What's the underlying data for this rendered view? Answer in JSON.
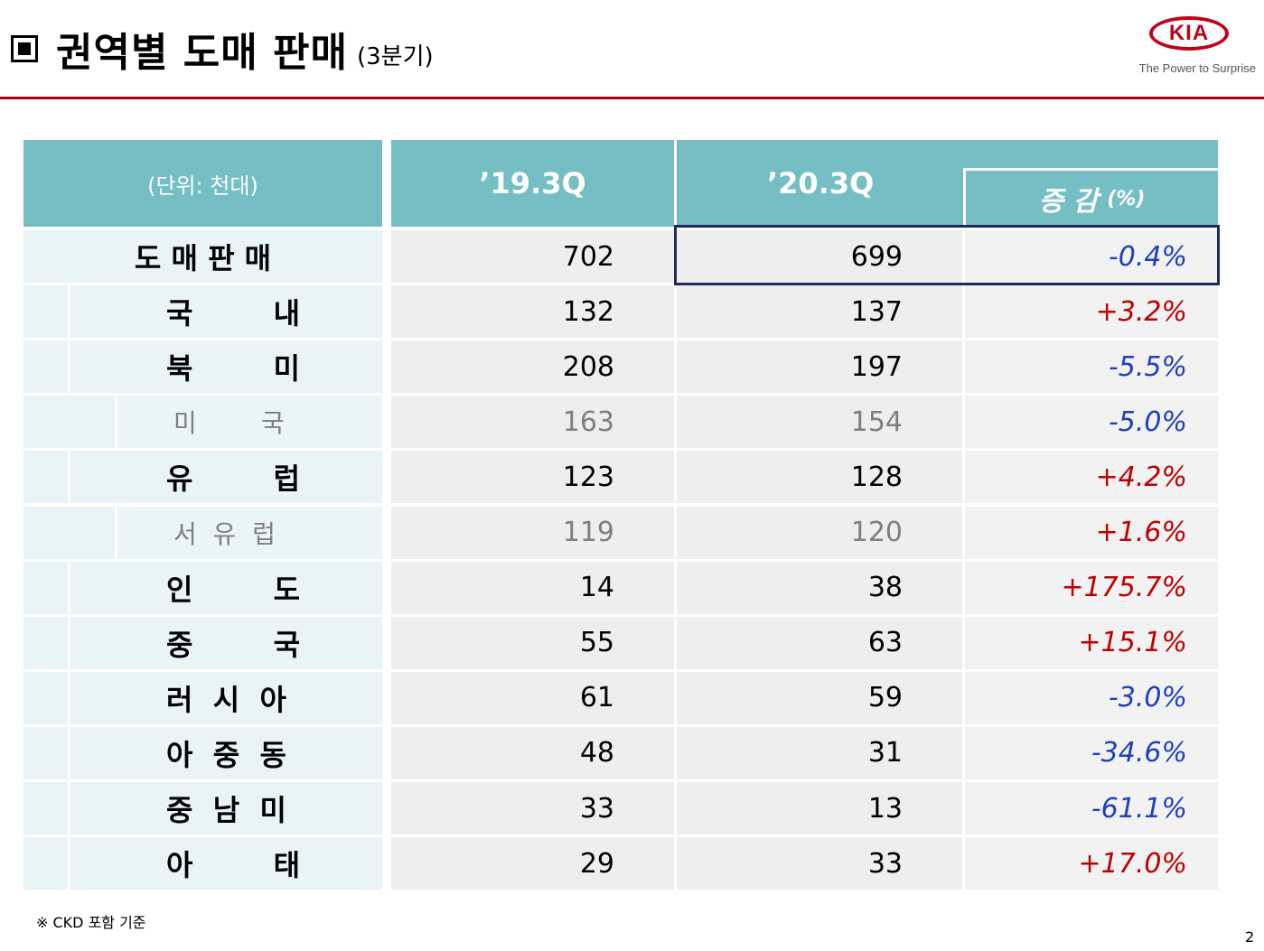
{
  "header": {
    "title": "권역별 도매 판매",
    "subtitle": "(3분기)",
    "logo_text": "KIA",
    "logo_tagline": "The Power to Surprise"
  },
  "table": {
    "unit_label": "(단위: 천대)",
    "col_2019": "’19.3Q",
    "col_2020": "’20.3Q",
    "col_change": "증 감",
    "col_change_unit": "(%)",
    "rows": [
      {
        "label": "도 매 판 매",
        "v2019": "702",
        "v2020": "699",
        "change": "-0.4%"
      },
      {
        "label": "국        내",
        "v2019": "132",
        "v2020": "137",
        "change": "+3.2%"
      },
      {
        "label": "북        미",
        "v2019": "208",
        "v2020": "197",
        "change": "-5.5%"
      },
      {
        "label": "미        국",
        "v2019": "163",
        "v2020": "154",
        "change": "-5.0%"
      },
      {
        "label": "유        럽",
        "v2019": "123",
        "v2020": "128",
        "change": "+4.2%"
      },
      {
        "label": "서  유  럽",
        "v2019": "119",
        "v2020": "120",
        "change": "+1.6%"
      },
      {
        "label": "인        도",
        "v2019": "14",
        "v2020": "38",
        "change": "+175.7%"
      },
      {
        "label": "중        국",
        "v2019": "55",
        "v2020": "63",
        "change": "+15.1%"
      },
      {
        "label": "러  시  아",
        "v2019": "61",
        "v2020": "59",
        "change": "-3.0%"
      },
      {
        "label": "아  중  동",
        "v2019": "48",
        "v2020": "31",
        "change": "-34.6%"
      },
      {
        "label": "중  남  미",
        "v2019": "33",
        "v2020": "13",
        "change": "-61.1%"
      },
      {
        "label": "아        태",
        "v2019": "29",
        "v2020": "33",
        "change": "+17.0%"
      }
    ]
  },
  "colors": {
    "header_bg": "#74bec4",
    "positive": "#c00000",
    "negative": "#1f3fbf",
    "accent_rule": "#b1001a"
  },
  "footnote": "※  CKD 포함 기준",
  "page_number": "2"
}
